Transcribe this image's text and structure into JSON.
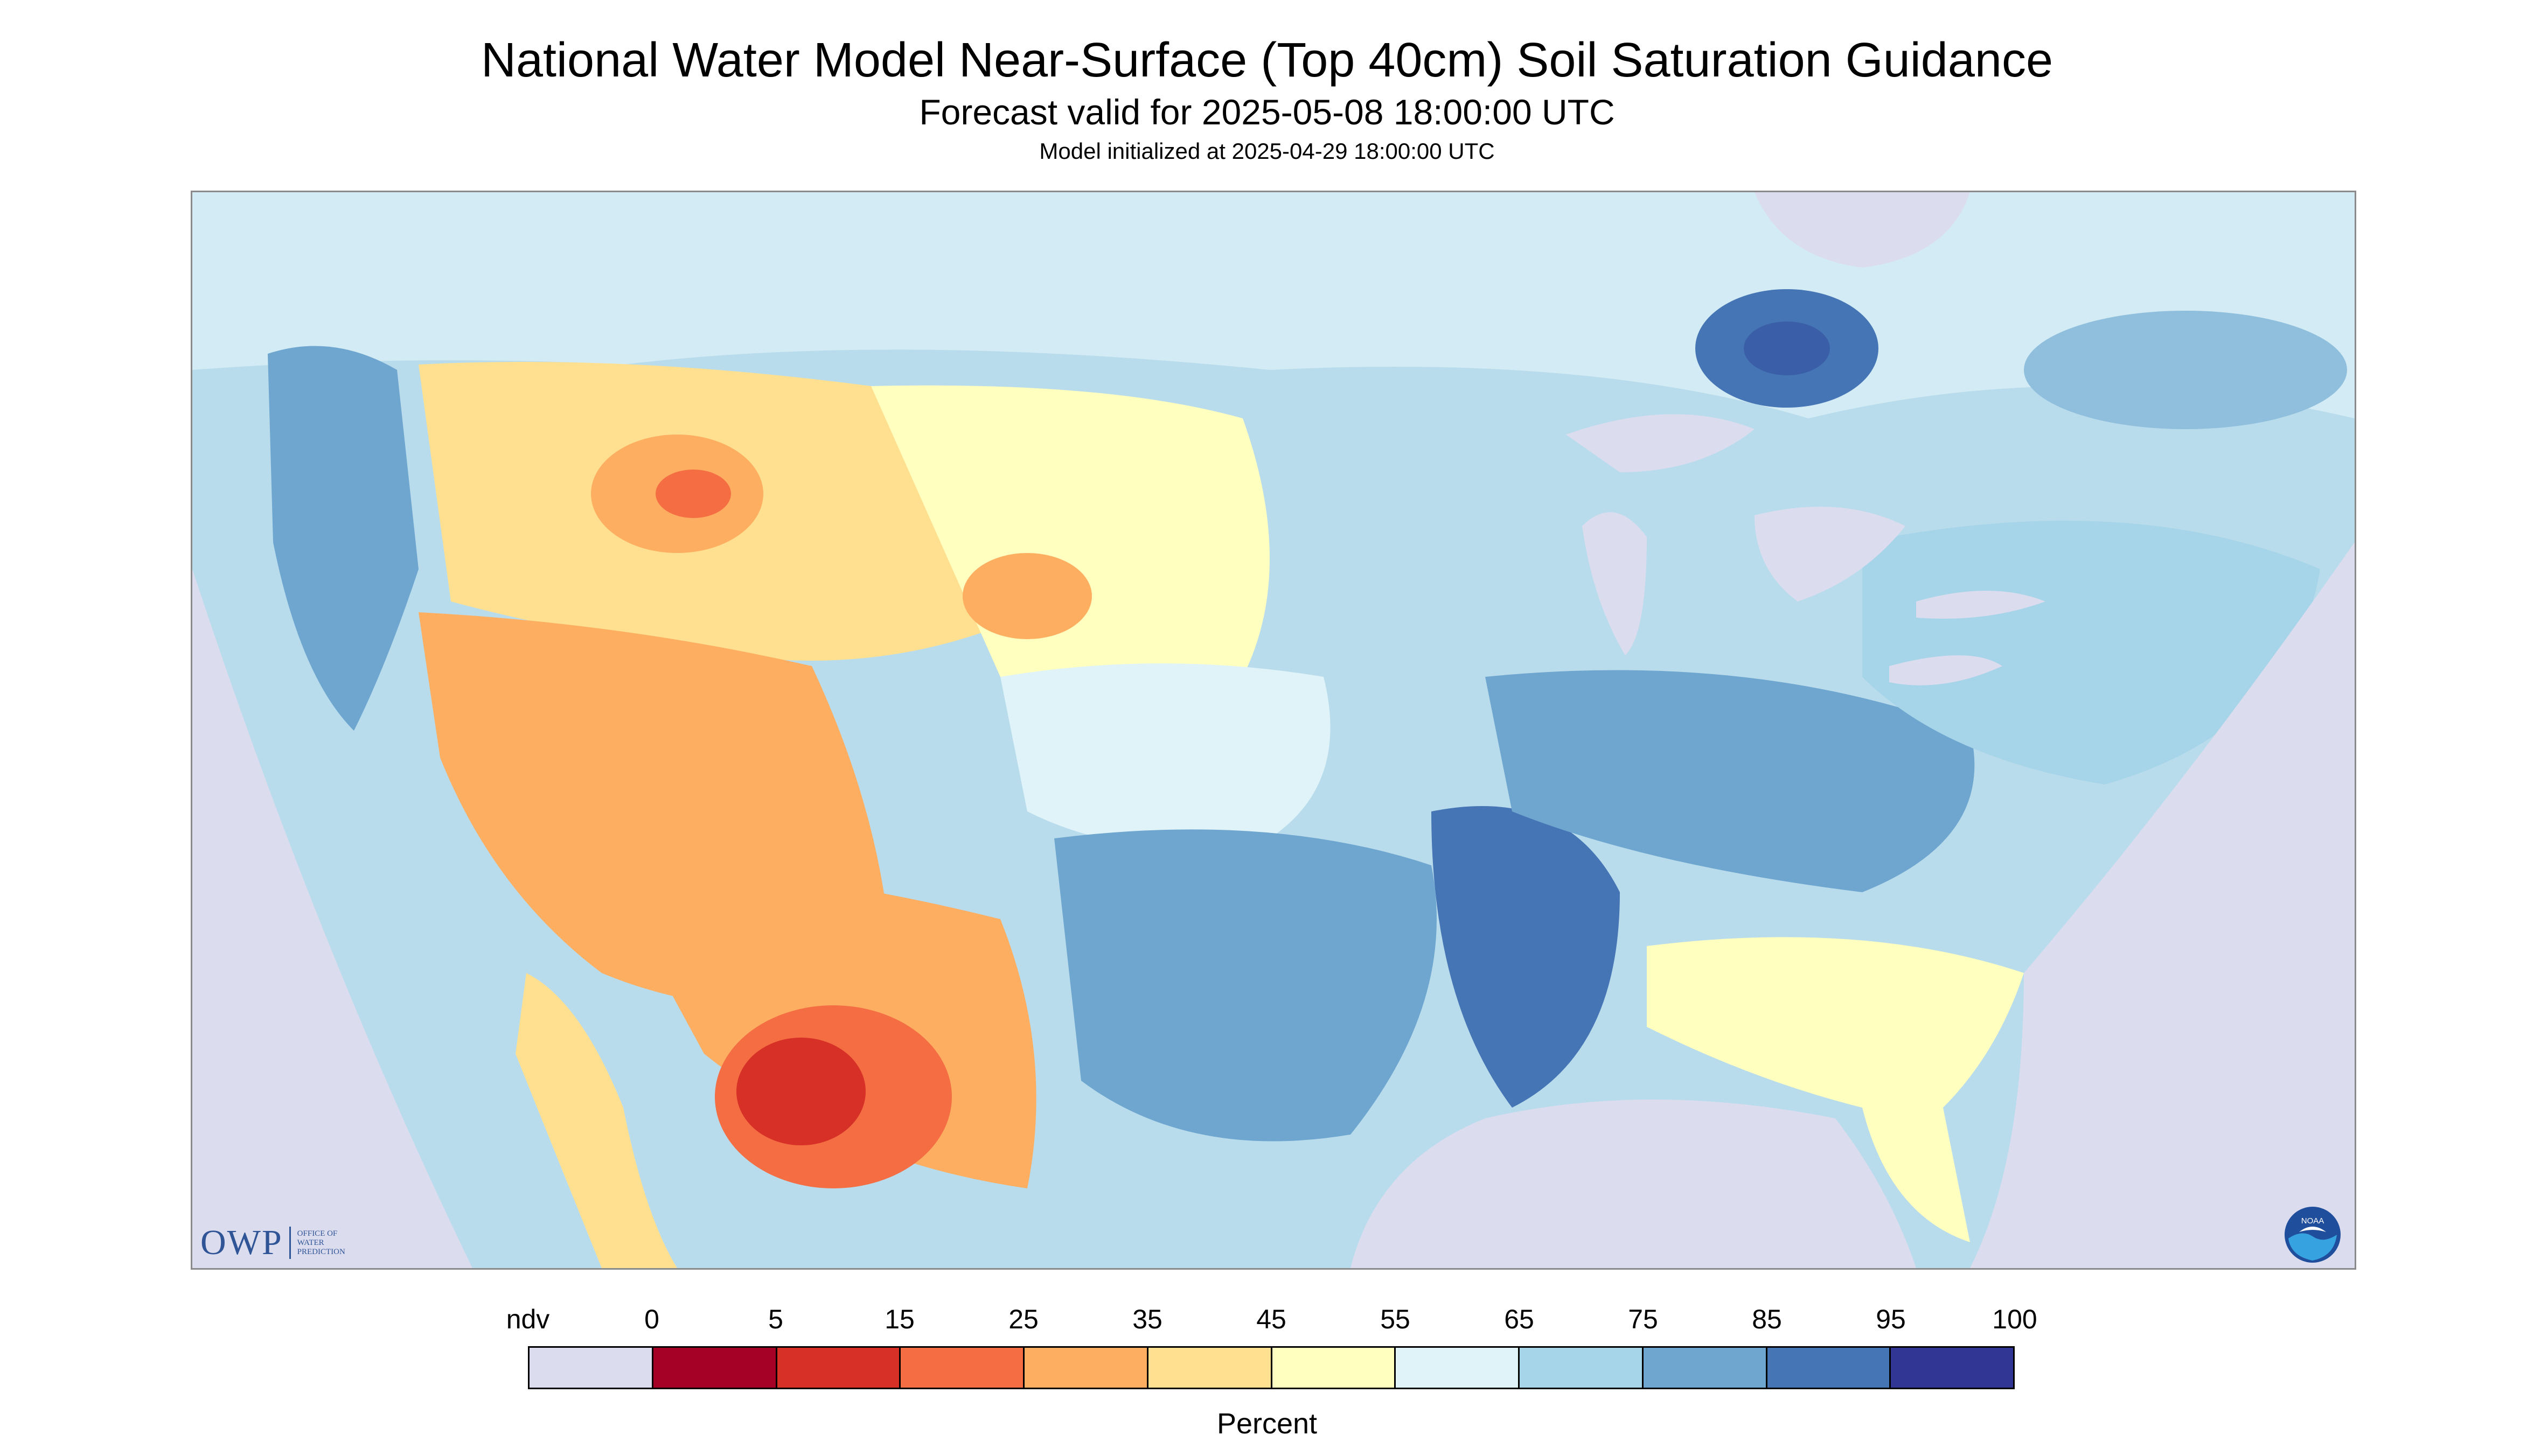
{
  "header": {
    "title": "National Water Model Near-Surface (Top 40cm) Soil Saturation Guidance",
    "subtitle": "Forecast valid for 2025-05-08 18:00:00 UTC",
    "initialized": "Model initialized at 2025-04-29 18:00:00 UTC"
  },
  "map": {
    "projection": "Lambert conformal conic, CONUS",
    "background_color": "#dcdcef",
    "regions": [
      {
        "name": "Pacific Northwest",
        "category": "75-85",
        "color": "#6ea6cf"
      },
      {
        "name": "Northern Rockies",
        "category": "35-45",
        "color": "#fee090"
      },
      {
        "name": "Idaho / Montana hotspot",
        "category": "25-35",
        "color": "#fdae61"
      },
      {
        "name": "Great Basin / Nevada",
        "category": "25-35",
        "color": "#fdae61"
      },
      {
        "name": "Arizona / New Mexico",
        "category": "25-35",
        "color": "#fdae61"
      },
      {
        "name": "Northwestern Mexico (Sonora)",
        "category": "5-15",
        "color": "#d73027"
      },
      {
        "name": "Baja California",
        "category": "35-45",
        "color": "#fee090"
      },
      {
        "name": "Northern Plains",
        "category": "45-55",
        "color": "#ffffbf"
      },
      {
        "name": "Central Plains",
        "category": "55-65",
        "color": "#e0f3f8"
      },
      {
        "name": "Oklahoma / Texas east",
        "category": "75-85",
        "color": "#6ea6cf"
      },
      {
        "name": "Lower Mississippi Valley",
        "category": "85-95",
        "color": "#4575b4"
      },
      {
        "name": "Ohio Valley",
        "category": "75-85",
        "color": "#6ea6cf"
      },
      {
        "name": "Southeast / Florida",
        "category": "45-55",
        "color": "#ffffbf"
      },
      {
        "name": "Northeast",
        "category": "65-75",
        "color": "#a6d4e8"
      },
      {
        "name": "Southern Canada",
        "category": "65-75",
        "color": "#a6d4e8"
      },
      {
        "name": "Hudson Bay lowlands",
        "category": "85-95",
        "color": "#4575b4"
      }
    ],
    "logos": {
      "owp_main": "OWP",
      "owp_line1": "Office of",
      "owp_line2": "Water",
      "owp_line3": "Prediction",
      "noaa_text": "NOAA"
    }
  },
  "legend": {
    "unit_label": "Percent",
    "tick_labels": [
      "ndv",
      "0",
      "5",
      "15",
      "25",
      "35",
      "45",
      "55",
      "65",
      "75",
      "85",
      "95",
      "100"
    ],
    "bins": [
      {
        "label": "ndv",
        "color": "#dcdcef"
      },
      {
        "label": "0-5",
        "color": "#a50026"
      },
      {
        "label": "5-15",
        "color": "#d73027"
      },
      {
        "label": "15-25",
        "color": "#f46d43"
      },
      {
        "label": "25-35",
        "color": "#fdae61"
      },
      {
        "label": "35-45",
        "color": "#fee090"
      },
      {
        "label": "45-55",
        "color": "#ffffbf"
      },
      {
        "label": "55-65",
        "color": "#e0f3f8"
      },
      {
        "label": "65-75",
        "color": "#a6d4e8"
      },
      {
        "label": "75-85",
        "color": "#6ea6cf"
      },
      {
        "label": "85-95",
        "color": "#4575b4"
      },
      {
        "label": "95-100",
        "color": "#313695"
      }
    ]
  }
}
